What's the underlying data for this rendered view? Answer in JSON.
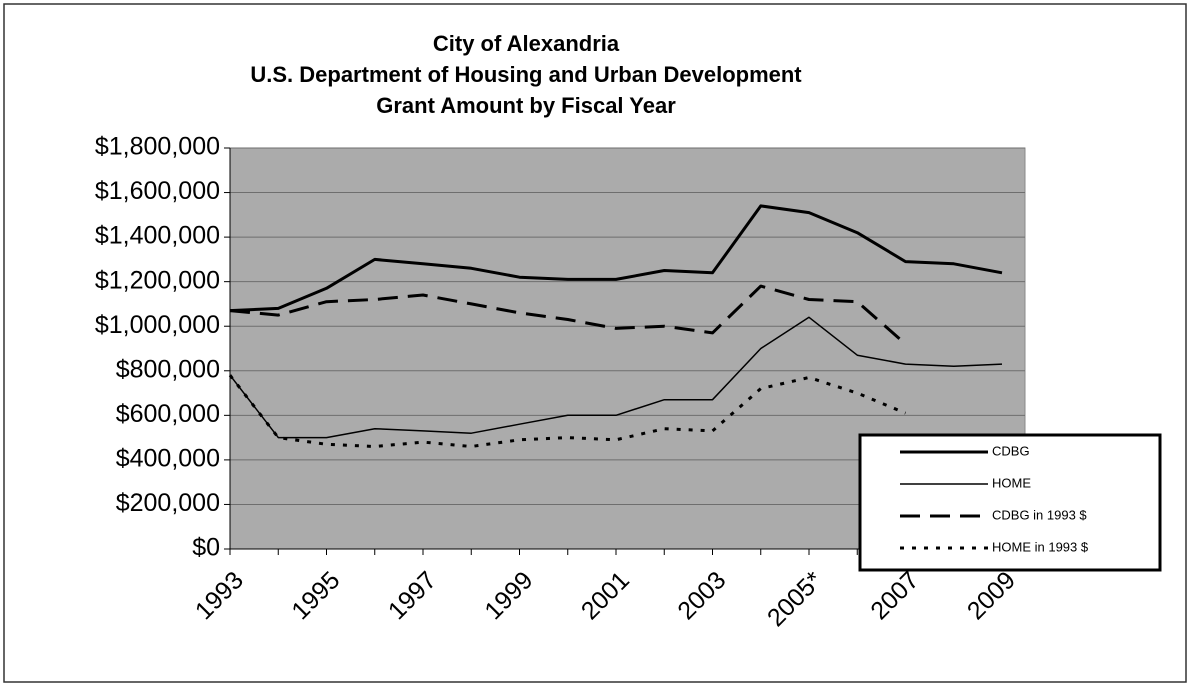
{
  "chart_data": {
    "type": "line",
    "title": [
      "City of Alexandria",
      "U.S. Department of Housing and Urban Development",
      "Grant Amount by Fiscal Year"
    ],
    "categories": [
      "1993",
      null,
      "1995",
      null,
      "1997",
      null,
      "1999",
      null,
      "2001",
      null,
      "2003",
      null,
      "2005*",
      null,
      "2007",
      null,
      "2009"
    ],
    "series": [
      {
        "name": "CDBG",
        "color": "#000000",
        "dash": "solid",
        "width": 3,
        "values": [
          1070000,
          1080000,
          1170000,
          1300000,
          1280000,
          1260000,
          1220000,
          1210000,
          1210000,
          1250000,
          1240000,
          1540000,
          1510000,
          1420000,
          1290000,
          1280000,
          1240000
        ]
      },
      {
        "name": "HOME",
        "color": "#000000",
        "dash": "solid",
        "width": 1.5,
        "values": [
          780000,
          500000,
          500000,
          540000,
          530000,
          520000,
          560000,
          600000,
          600000,
          670000,
          670000,
          900000,
          1040000,
          870000,
          830000,
          820000,
          830000
        ]
      },
      {
        "name": "CDBG in 1993 $",
        "color": "#000000",
        "dash": "dashed",
        "width": 3,
        "values": [
          1070000,
          1050000,
          1110000,
          1120000,
          1140000,
          1100000,
          1060000,
          1030000,
          990000,
          1000000,
          970000,
          1180000,
          1120000,
          1110000,
          920000,
          null,
          null
        ]
      },
      {
        "name": "HOME in 1993 $",
        "color": "#000000",
        "dash": "dotted",
        "width": 3,
        "values": [
          780000,
          500000,
          470000,
          460000,
          480000,
          460000,
          490000,
          500000,
          490000,
          540000,
          530000,
          720000,
          770000,
          700000,
          610000,
          null,
          null
        ]
      }
    ],
    "ylim": [
      0,
      1800000
    ],
    "yticks": [
      {
        "value": 0,
        "label": "$0"
      },
      {
        "value": 200000,
        "label": "$200,000"
      },
      {
        "value": 400000,
        "label": "$400,000"
      },
      {
        "value": 600000,
        "label": "$600,000"
      },
      {
        "value": 800000,
        "label": "$800,000"
      },
      {
        "value": 1000000,
        "label": "$1,000,000"
      },
      {
        "value": 1200000,
        "label": "$1,200,000"
      },
      {
        "value": 1400000,
        "label": "$1,400,000"
      },
      {
        "value": 1600000,
        "label": "$1,600,000"
      },
      {
        "value": 1800000,
        "label": "$1,800,000"
      }
    ],
    "grid": true,
    "plot_background": "#ababab",
    "legend_position": "lower right"
  }
}
